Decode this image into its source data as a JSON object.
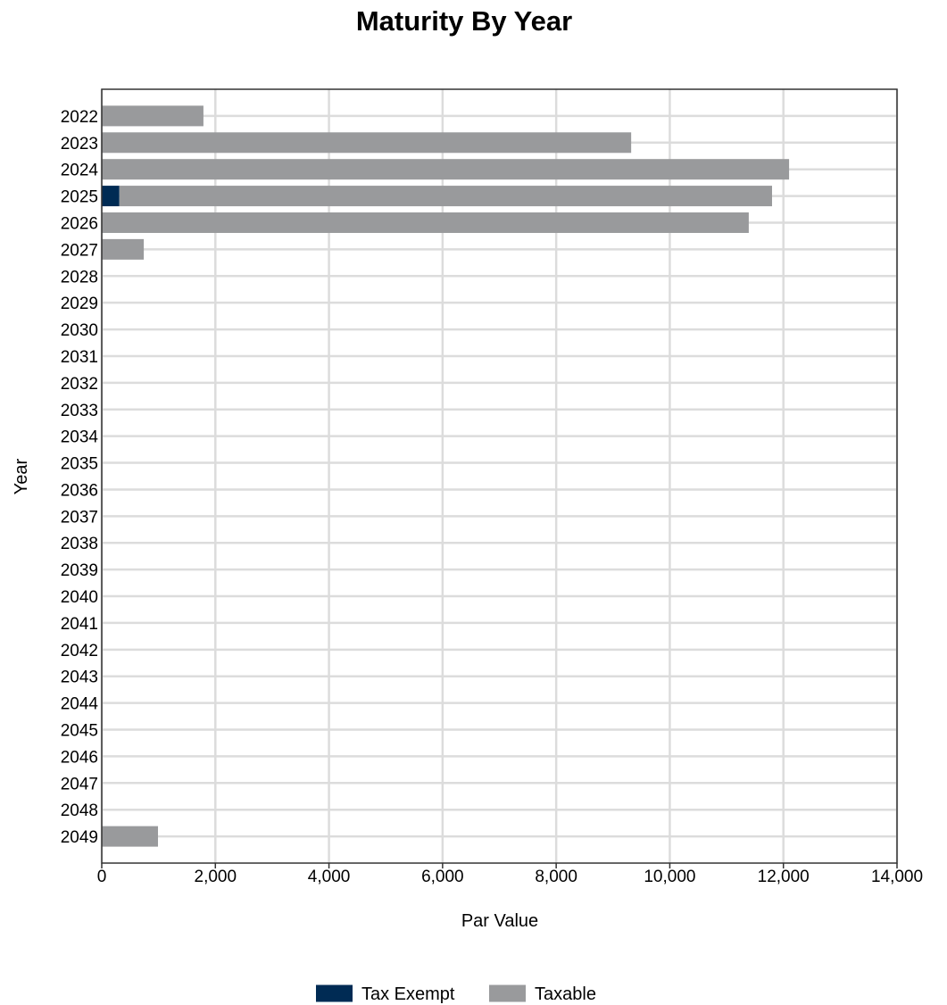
{
  "chart_data": {
    "type": "bar",
    "orientation": "horizontal",
    "stacked": true,
    "title": "Maturity By Year",
    "xlabel": "Par Value",
    "ylabel": "Year",
    "xlim": [
      0,
      14000
    ],
    "x_ticks": [
      0,
      2000,
      4000,
      6000,
      8000,
      10000,
      12000,
      14000
    ],
    "x_tick_labels": [
      "0",
      "2,000",
      "4,000",
      "6,000",
      "8,000",
      "10,000",
      "12,000",
      "14,000"
    ],
    "grid": true,
    "legend_position": "bottom",
    "categories": [
      "2022",
      "2023",
      "2024",
      "2025",
      "2026",
      "2027",
      "2028",
      "2029",
      "2030",
      "2031",
      "2032",
      "2033",
      "2034",
      "2035",
      "2036",
      "2037",
      "2038",
      "2039",
      "2040",
      "2041",
      "2042",
      "2043",
      "2044",
      "2045",
      "2046",
      "2047",
      "2048",
      "2049"
    ],
    "series": [
      {
        "name": "Tax Exempt",
        "color": "#002b54",
        "values": [
          0,
          0,
          0,
          310,
          0,
          0,
          0,
          0,
          0,
          0,
          0,
          0,
          0,
          0,
          0,
          0,
          0,
          0,
          0,
          0,
          0,
          0,
          0,
          0,
          0,
          0,
          0,
          0
        ]
      },
      {
        "name": "Taxable",
        "color": "#999a9c",
        "values": [
          1790,
          9320,
          12100,
          11490,
          11390,
          740,
          0,
          0,
          0,
          0,
          0,
          0,
          0,
          0,
          0,
          0,
          0,
          0,
          0,
          0,
          0,
          0,
          0,
          0,
          0,
          0,
          0,
          990
        ]
      }
    ]
  }
}
